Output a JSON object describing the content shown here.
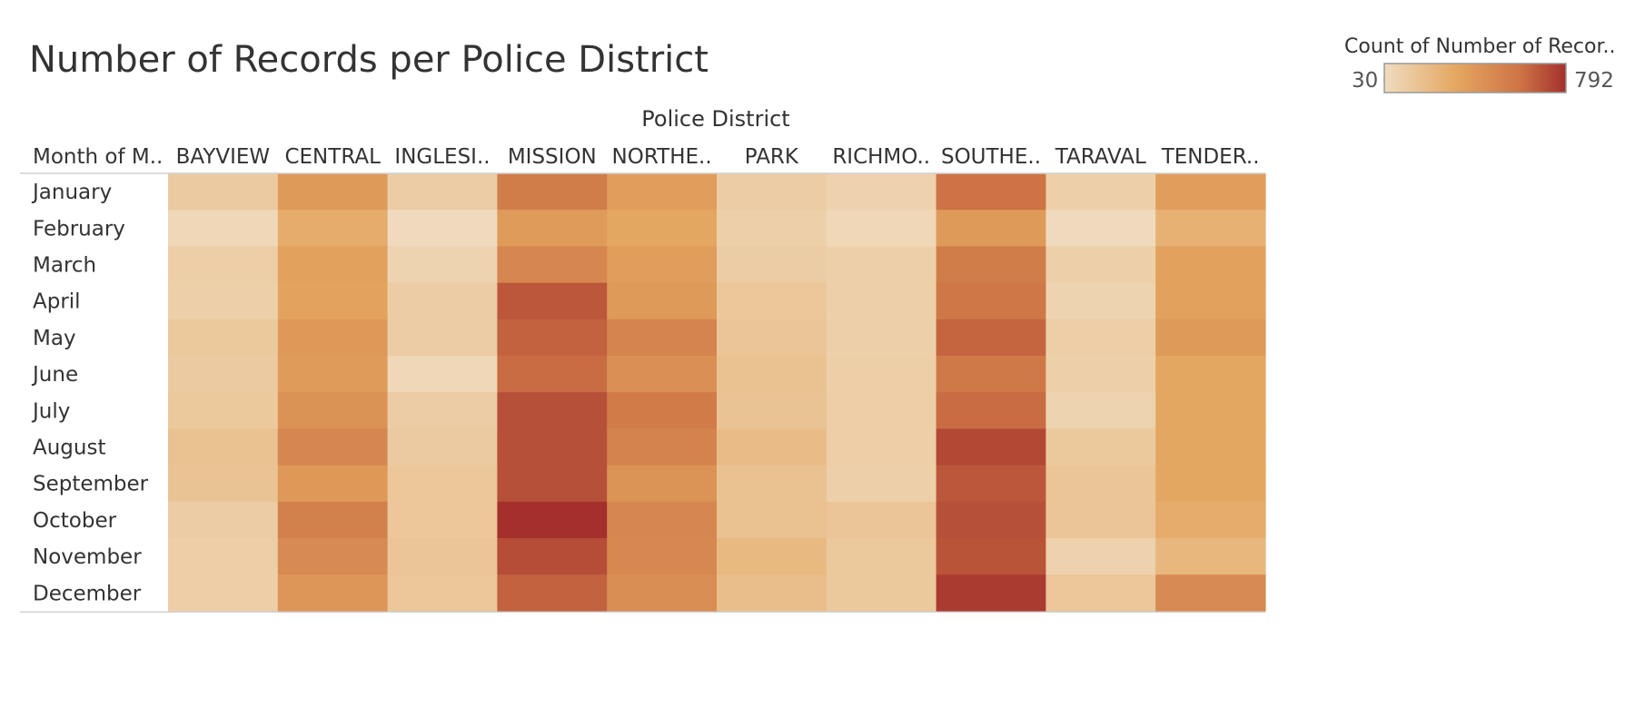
{
  "chart_data": {
    "type": "heatmap",
    "title": "Number of Records per Police District",
    "column_header": "Police District",
    "row_header": "Month of M..",
    "columns": [
      "BAYVIEW",
      "CENTRAL",
      "INGLESI..",
      "MISSION",
      "NORTHE..",
      "PARK",
      "RICHMO..",
      "SOUTHE..",
      "TARAVAL",
      "TENDER.."
    ],
    "rows": [
      "January",
      "February",
      "March",
      "April",
      "May",
      "June",
      "July",
      "August",
      "September",
      "October",
      "November",
      "December"
    ],
    "values": [
      [
        130,
        400,
        120,
        550,
        380,
        120,
        90,
        600,
        100,
        380
      ],
      [
        60,
        300,
        40,
        390,
        330,
        100,
        60,
        400,
        40,
        270
      ],
      [
        110,
        360,
        80,
        500,
        380,
        120,
        100,
        550,
        100,
        360
      ],
      [
        100,
        350,
        120,
        680,
        400,
        150,
        100,
        580,
        80,
        360
      ],
      [
        140,
        410,
        120,
        650,
        510,
        160,
        100,
        640,
        110,
        400
      ],
      [
        130,
        390,
        60,
        620,
        450,
        180,
        110,
        570,
        100,
        330
      ],
      [
        140,
        440,
        120,
        700,
        560,
        170,
        110,
        620,
        80,
        330
      ],
      [
        180,
        500,
        130,
        700,
        520,
        210,
        110,
        720,
        140,
        330
      ],
      [
        170,
        410,
        150,
        700,
        430,
        180,
        100,
        680,
        160,
        330
      ],
      [
        120,
        530,
        150,
        792,
        500,
        180,
        160,
        700,
        160,
        300
      ],
      [
        110,
        480,
        160,
        710,
        490,
        230,
        140,
        690,
        90,
        240
      ],
      [
        110,
        420,
        150,
        650,
        460,
        200,
        140,
        760,
        150,
        480
      ]
    ],
    "color_min": 30,
    "color_max": 792,
    "colors": [
      "#f0dcc0",
      "#e4a660",
      "#cd7345",
      "#a3302c"
    ],
    "legend": {
      "title": "Count of Number of Recor..",
      "min_label": "30",
      "max_label": "792",
      "position": "top-right"
    }
  }
}
